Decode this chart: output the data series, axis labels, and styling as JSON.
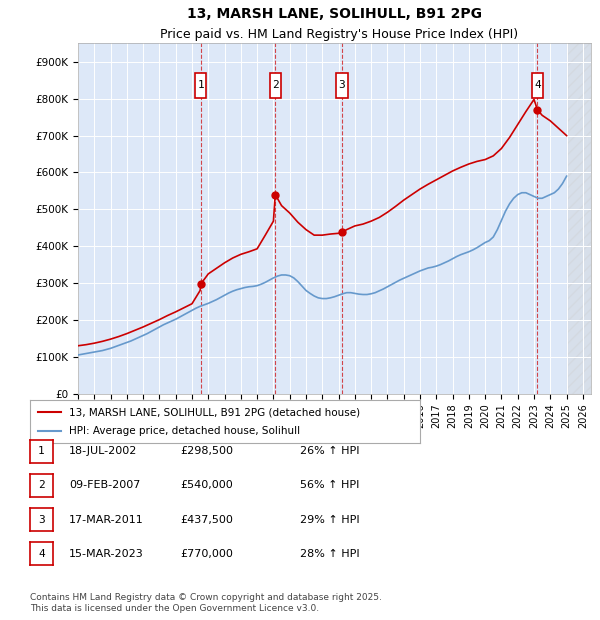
{
  "title": "13, MARSH LANE, SOLIHULL, B91 2PG",
  "subtitle": "Price paid vs. HM Land Registry's House Price Index (HPI)",
  "background_color": "#dde8f8",
  "plot_bg_color": "#dde8f8",
  "ylabel": "",
  "ylim": [
    0,
    950000
  ],
  "yticks": [
    0,
    100000,
    200000,
    300000,
    400000,
    500000,
    600000,
    700000,
    800000,
    900000
  ],
  "ytick_labels": [
    "£0",
    "£100K",
    "£200K",
    "£300K",
    "£400K",
    "£500K",
    "£600K",
    "£700K",
    "£800K",
    "£900K"
  ],
  "xlim_start": 1995,
  "xlim_end": 2026.5,
  "xticks": [
    1995,
    1996,
    1997,
    1998,
    1999,
    2000,
    2001,
    2002,
    2003,
    2004,
    2005,
    2006,
    2007,
    2008,
    2009,
    2010,
    2011,
    2012,
    2013,
    2014,
    2015,
    2016,
    2017,
    2018,
    2019,
    2020,
    2021,
    2022,
    2023,
    2024,
    2025,
    2026
  ],
  "sale_dates_num": [
    2002.54,
    2007.11,
    2011.21,
    2023.21
  ],
  "sale_prices": [
    298500,
    540000,
    437500,
    770000
  ],
  "sale_labels": [
    "1",
    "2",
    "3",
    "4"
  ],
  "red_color": "#cc0000",
  "blue_color": "#6699cc",
  "legend_entries": [
    "13, MARSH LANE, SOLIHULL, B91 2PG (detached house)",
    "HPI: Average price, detached house, Solihull"
  ],
  "table_entries": [
    {
      "num": "1",
      "date": "18-JUL-2002",
      "price": "£298,500",
      "pct": "26% ↑ HPI"
    },
    {
      "num": "2",
      "date": "09-FEB-2007",
      "price": "£540,000",
      "pct": "56% ↑ HPI"
    },
    {
      "num": "3",
      "date": "17-MAR-2011",
      "price": "£437,500",
      "pct": "29% ↑ HPI"
    },
    {
      "num": "4",
      "date": "15-MAR-2023",
      "price": "£770,000",
      "pct": "28% ↑ HPI"
    }
  ],
  "footer": "Contains HM Land Registry data © Crown copyright and database right 2025.\nThis data is licensed under the Open Government Licence v3.0.",
  "hpi_x": [
    1995.0,
    1995.25,
    1995.5,
    1995.75,
    1996.0,
    1996.25,
    1996.5,
    1996.75,
    1997.0,
    1997.25,
    1997.5,
    1997.75,
    1998.0,
    1998.25,
    1998.5,
    1998.75,
    1999.0,
    1999.25,
    1999.5,
    1999.75,
    2000.0,
    2000.25,
    2000.5,
    2000.75,
    2001.0,
    2001.25,
    2001.5,
    2001.75,
    2002.0,
    2002.25,
    2002.5,
    2002.75,
    2003.0,
    2003.25,
    2003.5,
    2003.75,
    2004.0,
    2004.25,
    2004.5,
    2004.75,
    2005.0,
    2005.25,
    2005.5,
    2005.75,
    2006.0,
    2006.25,
    2006.5,
    2006.75,
    2007.0,
    2007.25,
    2007.5,
    2007.75,
    2008.0,
    2008.25,
    2008.5,
    2008.75,
    2009.0,
    2009.25,
    2009.5,
    2009.75,
    2010.0,
    2010.25,
    2010.5,
    2010.75,
    2011.0,
    2011.25,
    2011.5,
    2011.75,
    2012.0,
    2012.25,
    2012.5,
    2012.75,
    2013.0,
    2013.25,
    2013.5,
    2013.75,
    2014.0,
    2014.25,
    2014.5,
    2014.75,
    2015.0,
    2015.25,
    2015.5,
    2015.75,
    2016.0,
    2016.25,
    2016.5,
    2016.75,
    2017.0,
    2017.25,
    2017.5,
    2017.75,
    2018.0,
    2018.25,
    2018.5,
    2018.75,
    2019.0,
    2019.25,
    2019.5,
    2019.75,
    2020.0,
    2020.25,
    2020.5,
    2020.75,
    2021.0,
    2021.25,
    2021.5,
    2021.75,
    2022.0,
    2022.25,
    2022.5,
    2022.75,
    2023.0,
    2023.25,
    2023.5,
    2023.75,
    2024.0,
    2024.25,
    2024.5,
    2024.75,
    2025.0
  ],
  "hpi_y": [
    105000,
    107000,
    109000,
    111000,
    113000,
    115000,
    117000,
    120000,
    123000,
    127000,
    131000,
    135000,
    139000,
    143000,
    148000,
    153000,
    158000,
    163000,
    169000,
    175000,
    181000,
    187000,
    192000,
    197000,
    202000,
    208000,
    214000,
    220000,
    226000,
    232000,
    237000,
    241000,
    245000,
    250000,
    255000,
    261000,
    267000,
    273000,
    278000,
    282000,
    285000,
    288000,
    290000,
    291000,
    293000,
    297000,
    302000,
    308000,
    314000,
    319000,
    322000,
    322000,
    320000,
    314000,
    304000,
    292000,
    280000,
    272000,
    265000,
    260000,
    258000,
    258000,
    260000,
    263000,
    267000,
    271000,
    274000,
    274000,
    272000,
    270000,
    269000,
    269000,
    271000,
    274000,
    279000,
    284000,
    290000,
    296000,
    302000,
    308000,
    313000,
    318000,
    323000,
    328000,
    333000,
    337000,
    341000,
    343000,
    346000,
    350000,
    355000,
    360000,
    366000,
    372000,
    377000,
    381000,
    385000,
    390000,
    396000,
    403000,
    410000,
    415000,
    425000,
    445000,
    470000,
    495000,
    515000,
    530000,
    540000,
    545000,
    545000,
    540000,
    535000,
    530000,
    530000,
    535000,
    540000,
    545000,
    555000,
    570000,
    590000
  ],
  "property_x": [
    1995.0,
    1995.5,
    1996.0,
    1996.5,
    1997.0,
    1997.5,
    1998.0,
    1998.5,
    1999.0,
    1999.5,
    2000.0,
    2000.5,
    2001.0,
    2001.5,
    2002.0,
    2002.5,
    2002.54,
    2002.75,
    2003.0,
    2003.5,
    2004.0,
    2004.5,
    2005.0,
    2005.5,
    2006.0,
    2006.5,
    2007.0,
    2007.11,
    2007.5,
    2008.0,
    2008.5,
    2009.0,
    2009.5,
    2010.0,
    2010.5,
    2011.0,
    2011.21,
    2011.5,
    2012.0,
    2012.5,
    2013.0,
    2013.5,
    2014.0,
    2014.5,
    2015.0,
    2015.5,
    2016.0,
    2016.5,
    2017.0,
    2017.5,
    2018.0,
    2018.5,
    2019.0,
    2019.5,
    2020.0,
    2020.5,
    2021.0,
    2021.5,
    2022.0,
    2022.5,
    2023.0,
    2023.21,
    2023.5,
    2024.0,
    2024.5,
    2025.0
  ],
  "property_y": [
    130000,
    133000,
    137000,
    142000,
    148000,
    155000,
    163000,
    172000,
    181000,
    191000,
    201000,
    212000,
    222000,
    233000,
    244000,
    280000,
    298500,
    310000,
    325000,
    340000,
    355000,
    368000,
    378000,
    385000,
    393000,
    430000,
    468000,
    540000,
    510000,
    490000,
    465000,
    445000,
    430000,
    430000,
    433000,
    435000,
    437500,
    445000,
    455000,
    460000,
    468000,
    478000,
    492000,
    508000,
    525000,
    540000,
    555000,
    568000,
    580000,
    592000,
    604000,
    614000,
    623000,
    630000,
    635000,
    645000,
    665000,
    695000,
    730000,
    765000,
    798000,
    770000,
    755000,
    740000,
    720000,
    700000
  ]
}
